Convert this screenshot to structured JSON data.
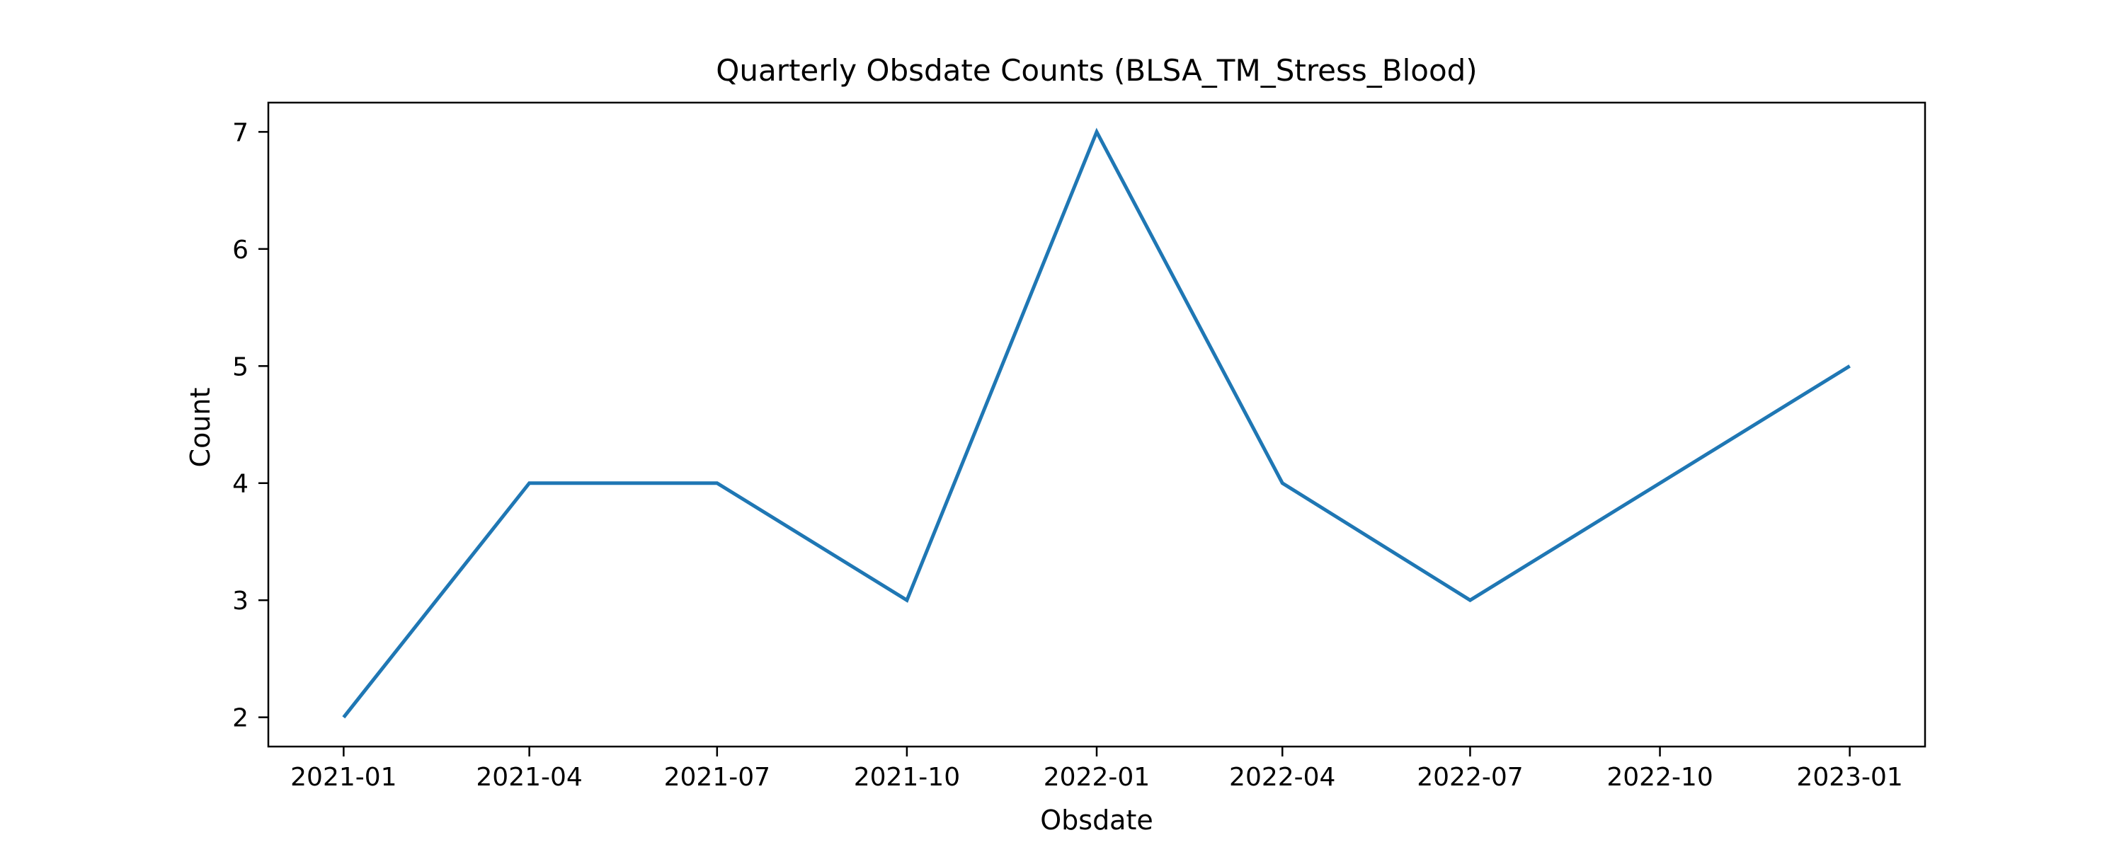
{
  "chart_data": {
    "type": "line",
    "title": "Quarterly Obsdate Counts (BLSA_TM_Stress_Blood)",
    "xlabel": "Obsdate",
    "ylabel": "Count",
    "x": [
      "2021-01-01",
      "2021-04-01",
      "2021-07-01",
      "2021-10-01",
      "2022-01-01",
      "2022-04-01",
      "2022-07-01",
      "2022-10-01",
      "2023-01-01"
    ],
    "x_tick_labels": [
      "2021-01",
      "2021-04",
      "2021-07",
      "2021-10",
      "2022-01",
      "2022-04",
      "2022-07",
      "2022-10",
      "2023-01"
    ],
    "series": [
      {
        "values": [
          2,
          4,
          4,
          3,
          7,
          4,
          3,
          4,
          5
        ]
      }
    ],
    "ylim": [
      1.75,
      7.25
    ],
    "y_ticks": [
      2,
      3,
      4,
      5,
      6,
      7
    ],
    "grid": false,
    "line_color": "#1f77b4"
  }
}
